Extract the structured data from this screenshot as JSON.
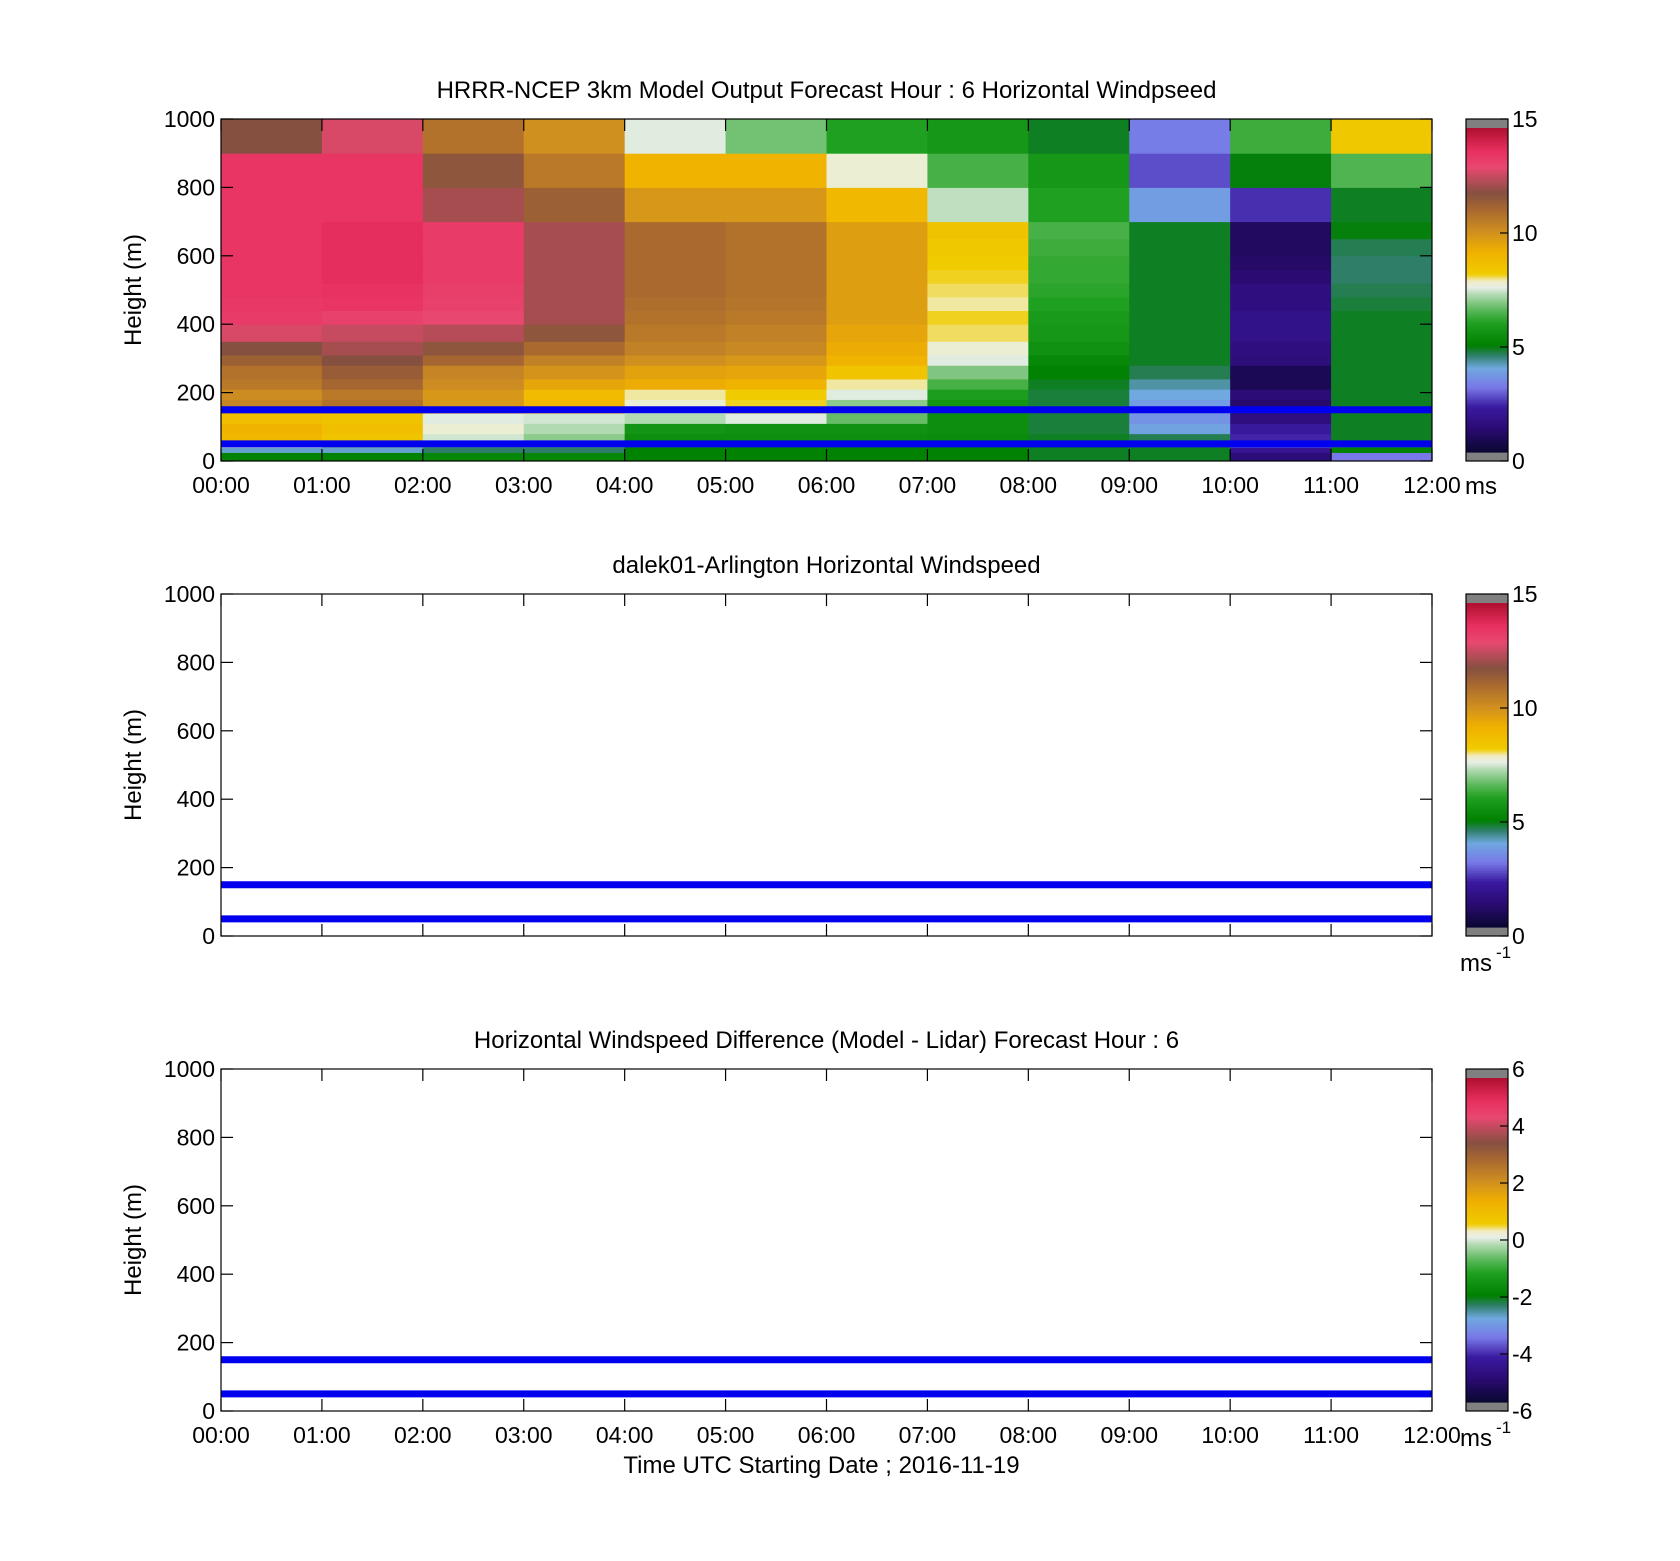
{
  "chart_data": [
    {
      "type": "heatmap",
      "title": "HRRR-NCEP 3km Model Output   Forecast Hour : 6 Horizontal Windpseed",
      "xlabel": "",
      "ylabel": "Height (m)",
      "xlim": [
        0,
        12
      ],
      "ylim": [
        0,
        1000
      ],
      "yticks": [
        "0",
        "200",
        "400",
        "600",
        "800",
        "1000"
      ],
      "xticks": [
        "00:00",
        "01:00",
        "02:00",
        "03:00",
        "04:00",
        "05:00",
        "06:00",
        "07:00",
        "08:00",
        "09:00",
        "10:00",
        "11:00",
        "12:00"
      ],
      "x_hours": [
        0,
        1,
        2,
        3,
        4,
        5,
        6,
        7,
        8,
        9,
        10,
        11
      ],
      "height_edges": [
        0,
        25,
        40,
        55,
        80,
        110,
        140,
        180,
        210,
        240,
        280,
        310,
        350,
        400,
        440,
        480,
        520,
        560,
        600,
        650,
        700,
        800,
        900,
        1000
      ],
      "values": [
        [
          5.0,
          5.0,
          5.2,
          5.2,
          5.0,
          5.0,
          5.0,
          5.0,
          4.8,
          4.8,
          1.2,
          3.0
        ],
        [
          4.0,
          4.0,
          4.5,
          4.5,
          5.0,
          5.0,
          5.0,
          5.0,
          4.8,
          4.8,
          1.8,
          5.0
        ],
        [
          7.5,
          7.0,
          6.5,
          6.5,
          5.5,
          5.2,
          5.3,
          5.2,
          4.8,
          4.7,
          2.8,
          5.8
        ],
        [
          9.0,
          8.5,
          7.5,
          7.0,
          5.4,
          5.4,
          5.4,
          5.3,
          4.8,
          4.6,
          2.2,
          4.8
        ],
        [
          9.2,
          8.7,
          7.8,
          7.3,
          5.6,
          5.5,
          5.5,
          5.4,
          4.7,
          3.8,
          2.0,
          4.8
        ],
        [
          8.7,
          8.6,
          7.6,
          7.5,
          7.3,
          7.6,
          6.7,
          5.4,
          4.7,
          3.5,
          1.4,
          4.8
        ],
        [
          10.5,
          11.0,
          10.0,
          9.0,
          7.8,
          8.2,
          7.0,
          5.6,
          4.7,
          3.7,
          1.0,
          4.8
        ],
        [
          10.3,
          10.8,
          10.0,
          8.9,
          8.0,
          8.3,
          7.6,
          5.9,
          4.7,
          3.9,
          1.2,
          4.8
        ],
        [
          10.8,
          11.3,
          10.3,
          9.6,
          9.4,
          9.2,
          8.0,
          6.4,
          4.8,
          4.2,
          0.6,
          4.8
        ],
        [
          11.0,
          11.6,
          10.5,
          10.1,
          9.7,
          9.6,
          8.5,
          6.9,
          5.0,
          4.6,
          0.6,
          4.8
        ],
        [
          11.5,
          12.0,
          11.3,
          10.6,
          10.2,
          10.0,
          9.2,
          7.6,
          5.2,
          4.8,
          1.3,
          4.8
        ],
        [
          12.0,
          12.4,
          11.8,
          11.2,
          10.6,
          10.4,
          9.4,
          7.8,
          5.5,
          4.8,
          1.4,
          4.8
        ],
        [
          13.0,
          12.8,
          12.6,
          11.8,
          10.8,
          10.6,
          9.6,
          8.1,
          5.7,
          4.8,
          1.6,
          4.8
        ],
        [
          13.6,
          13.4,
          13.2,
          12.4,
          11.0,
          10.8,
          9.8,
          8.2,
          5.8,
          4.8,
          1.6,
          4.8
        ],
        [
          13.7,
          13.8,
          13.4,
          12.4,
          11.1,
          10.9,
          9.8,
          8.0,
          6.0,
          4.8,
          1.4,
          4.7
        ],
        [
          13.8,
          13.9,
          13.5,
          12.4,
          11.2,
          11.0,
          9.8,
          8.1,
          6.1,
          4.8,
          1.4,
          4.6
        ],
        [
          13.8,
          14.0,
          13.6,
          12.4,
          11.2,
          11.0,
          9.8,
          8.2,
          6.2,
          4.8,
          1.1,
          4.5
        ],
        [
          13.8,
          14.0,
          13.6,
          12.4,
          11.2,
          11.0,
          9.8,
          8.3,
          6.2,
          4.8,
          0.9,
          4.5
        ],
        [
          13.8,
          14.0,
          13.6,
          12.4,
          11.2,
          11.0,
          9.8,
          8.4,
          6.3,
          4.8,
          0.8,
          4.6
        ],
        [
          13.8,
          14.0,
          13.6,
          12.4,
          11.2,
          11.0,
          9.8,
          8.6,
          6.4,
          4.8,
          0.8,
          4.9
        ],
        [
          13.8,
          13.8,
          12.4,
          11.5,
          10.0,
          10.0,
          9.0,
          7.4,
          6.0,
          3.7,
          2.3,
          4.8
        ],
        [
          13.8,
          13.8,
          11.8,
          10.8,
          9.2,
          9.2,
          7.8,
          6.4,
          5.7,
          2.6,
          4.9,
          6.5
        ],
        [
          12.0,
          13.0,
          11.0,
          10.2,
          7.6,
          6.8,
          6.0,
          5.7,
          4.8,
          3.1,
          6.3,
          8.4
        ]
      ],
      "colorbar": {
        "ticks": [
          "0",
          "5",
          "10",
          "15"
        ],
        "min": 0,
        "max": 15,
        "unit": "ms"
      },
      "reference_heights": [
        50,
        150
      ]
    },
    {
      "type": "heatmap",
      "title": "dalek01-Arlington  Horizontal Windspeed",
      "xlabel": "",
      "ylabel": "Height (m)",
      "xlim": [
        0,
        12
      ],
      "ylim": [
        0,
        1000
      ],
      "yticks": [
        "0",
        "200",
        "400",
        "600",
        "800",
        "1000"
      ],
      "values": [],
      "colorbar": {
        "ticks": [
          "0",
          "5",
          "10",
          "15"
        ],
        "min": 0,
        "max": 15,
        "unit": "ms",
        "unit_exp": "-1"
      },
      "reference_heights": [
        50,
        150
      ]
    },
    {
      "type": "heatmap",
      "title": "Horizontal Windspeed Difference (Model - Lidar) Forecast Hour : 6",
      "xlabel": "Time UTC  Starting Date ; 2016-11-19",
      "ylabel": "Height (m)",
      "xlim": [
        0,
        12
      ],
      "ylim": [
        0,
        1000
      ],
      "yticks": [
        "0",
        "200",
        "400",
        "600",
        "800",
        "1000"
      ],
      "xticks": [
        "00:00",
        "01:00",
        "02:00",
        "03:00",
        "04:00",
        "05:00",
        "06:00",
        "07:00",
        "08:00",
        "09:00",
        "10:00",
        "11:00",
        "12:00"
      ],
      "values": [],
      "colorbar": {
        "ticks": [
          "-6",
          "-4",
          "-2",
          "0",
          "2",
          "4",
          "6"
        ],
        "min": -6,
        "max": 6,
        "unit": "ms",
        "unit_exp": "-1"
      },
      "reference_heights": [
        50,
        150
      ]
    }
  ],
  "colormap": [
    [
      0.0,
      "#080830"
    ],
    [
      0.07,
      "#2a0a70"
    ],
    [
      0.14,
      "#3a1aa0"
    ],
    [
      0.2,
      "#7878e8"
    ],
    [
      0.26,
      "#70a8e0"
    ],
    [
      0.3,
      "#2e7e68"
    ],
    [
      0.33,
      "#008000"
    ],
    [
      0.4,
      "#20a020"
    ],
    [
      0.44,
      "#5ab85a"
    ],
    [
      0.49,
      "#b8dcb8"
    ],
    [
      0.51,
      "#e8efe8"
    ],
    [
      0.53,
      "#f0ecc0"
    ],
    [
      0.55,
      "#f0cc00"
    ],
    [
      0.62,
      "#f0b000"
    ],
    [
      0.68,
      "#d09020"
    ],
    [
      0.75,
      "#a86830"
    ],
    [
      0.8,
      "#855040"
    ],
    [
      0.88,
      "#e84870"
    ],
    [
      0.93,
      "#e83060"
    ],
    [
      1.0,
      "#b01030"
    ]
  ],
  "reference_line_color": "#0000ee"
}
